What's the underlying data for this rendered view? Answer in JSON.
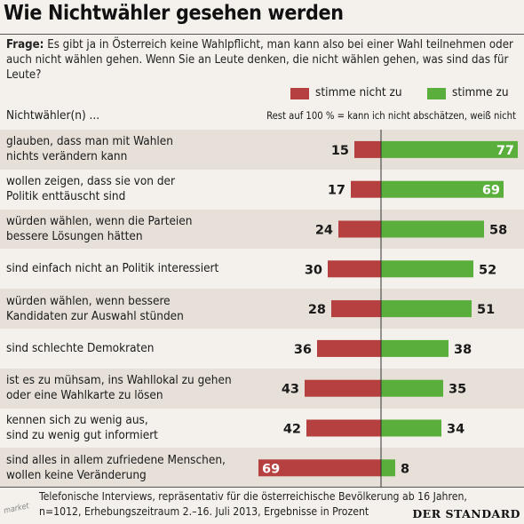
{
  "title": "Wie Nichtwähler gesehen werden",
  "question": {
    "lead": "Frage:",
    "text": "Es gibt ja in Österreich keine Wahlpflicht, man kann also bei einer Wahl teilnehmen oder auch nicht wählen gehen. Wenn Sie an Leute denken, die nicht wählen gehen, was sind das für Leute?"
  },
  "colors": {
    "negative": "#b5403f",
    "positive": "#5aae3c",
    "row_shade": "#e6e0d8",
    "row_plain": "#f4f1ec"
  },
  "chart_data": {
    "type": "bar",
    "orientation": "horizontal-diverging",
    "subject": "Nichtwähler(n) ...",
    "note": "Rest auf 100 % = kann ich nicht abschätzen, weiß nicht",
    "series": [
      {
        "name": "stimme nicht zu",
        "values": [
          15,
          17,
          24,
          30,
          28,
          36,
          43,
          42,
          69
        ]
      },
      {
        "name": "stimme zu",
        "values": [
          77,
          69,
          58,
          52,
          51,
          38,
          35,
          34,
          8
        ]
      }
    ],
    "categories": [
      "glauben, dass man mit Wahlen\nnichts verändern kann",
      "wollen zeigen, dass sie von der\nPolitik enttäuscht sind",
      "würden wählen, wenn die Parteien\nbessere Lösungen hätten",
      "sind einfach nicht an Politik interessiert",
      "würden wählen, wenn bessere\nKandidaten zur Auswahl stünden",
      "sind schlechte Demokraten",
      "ist es zu mühsam, ins Wahllokal zu gehen\noder eine Wahlkarte zu lösen",
      "kennen sich zu wenig aus,\nsind zu wenig gut informiert",
      "sind alles in allem zufriedene Menschen,\nwollen keine Veränderung"
    ],
    "unit": "%"
  },
  "footer": {
    "line1": "Telefonische Interviews, repräsentativ für die österreichische Bevölkerung ab 16 Jahren,",
    "line2": "n=1012, Erhebungszeitraum 2.–16. Juli 2013, Ergebnisse in Prozent",
    "watermark": "market",
    "brand": "DER STANDARD"
  }
}
